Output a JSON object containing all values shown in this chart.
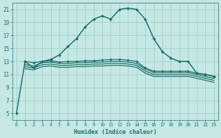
{
  "xlabel": "Humidex (Indice chaleur)",
  "bg_color": "#c5e8e5",
  "grid_color": "#9ecece",
  "line_color": "#1e6e68",
  "xlim": [
    -0.5,
    23.5
  ],
  "ylim": [
    4,
    22
  ],
  "yticks": [
    5,
    7,
    9,
    11,
    13,
    15,
    17,
    19,
    21
  ],
  "xticks": [
    0,
    1,
    2,
    3,
    4,
    5,
    6,
    7,
    8,
    9,
    10,
    11,
    12,
    13,
    14,
    15,
    16,
    17,
    18,
    19,
    20,
    21,
    22,
    23
  ],
  "lines": [
    {
      "x": [
        0,
        1,
        2,
        3,
        4,
        5,
        6,
        7,
        8,
        9,
        10,
        11,
        12,
        13,
        14,
        15,
        16,
        17,
        18,
        19,
        20,
        21,
        22,
        23
      ],
      "y": [
        5,
        13,
        12,
        13,
        13.3,
        14,
        15.3,
        16.5,
        18.3,
        19.5,
        20,
        19.5,
        21,
        21.2,
        21,
        19.5,
        16.5,
        14.5,
        13.5,
        13,
        13,
        11.2,
        11,
        10.7
      ],
      "marker": "D",
      "markersize": 2.0,
      "linewidth": 1.1,
      "has_marker": true
    },
    {
      "x": [
        1,
        2,
        3,
        4,
        5,
        6,
        7,
        8,
        9,
        10,
        11,
        12,
        13,
        14,
        15,
        16,
        17,
        18,
        19,
        20,
        21,
        22,
        23
      ],
      "y": [
        13,
        12.8,
        13,
        13.1,
        12.9,
        13.0,
        13.0,
        13.1,
        13.1,
        13.2,
        13.3,
        13.3,
        13.2,
        13,
        12,
        11.5,
        11.5,
        11.5,
        11.5,
        11.5,
        11.2,
        11.0,
        10.7
      ],
      "marker": "D",
      "markersize": 1.8,
      "linewidth": 0.9,
      "has_marker": true
    },
    {
      "x": [
        1,
        2,
        3,
        4,
        5,
        6,
        7,
        8,
        9,
        10,
        11,
        12,
        13,
        14,
        15,
        16,
        17,
        18,
        19,
        20,
        21,
        22,
        23
      ],
      "y": [
        12.5,
        12.3,
        12.8,
        12.9,
        12.7,
        12.7,
        12.8,
        12.8,
        12.9,
        12.9,
        13.0,
        13.0,
        12.9,
        12.7,
        11.8,
        11.3,
        11.3,
        11.3,
        11.3,
        11.3,
        11.0,
        10.7,
        10.4
      ],
      "marker": null,
      "markersize": 0,
      "linewidth": 0.9,
      "has_marker": false
    },
    {
      "x": [
        1,
        2,
        3,
        4,
        5,
        6,
        7,
        8,
        9,
        10,
        11,
        12,
        13,
        14,
        15,
        16,
        17,
        18,
        19,
        20,
        21,
        22,
        23
      ],
      "y": [
        12.2,
        12.0,
        12.5,
        12.6,
        12.4,
        12.4,
        12.5,
        12.5,
        12.6,
        12.6,
        12.7,
        12.7,
        12.6,
        12.4,
        11.5,
        11.0,
        11.0,
        11.0,
        11.0,
        11.0,
        10.7,
        10.4,
        10.1
      ],
      "marker": null,
      "markersize": 0,
      "linewidth": 0.9,
      "has_marker": false
    },
    {
      "x": [
        1,
        2,
        3,
        4,
        5,
        6,
        7,
        8,
        9,
        10,
        11,
        12,
        13,
        14,
        15,
        16,
        17,
        18,
        19,
        20,
        21,
        22,
        23
      ],
      "y": [
        11.9,
        11.7,
        12.2,
        12.3,
        12.1,
        12.1,
        12.2,
        12.2,
        12.3,
        12.3,
        12.4,
        12.4,
        12.3,
        12.1,
        11.2,
        10.7,
        10.7,
        10.7,
        10.7,
        10.7,
        10.4,
        10.1,
        9.8
      ],
      "marker": null,
      "markersize": 0,
      "linewidth": 0.9,
      "has_marker": false
    }
  ]
}
